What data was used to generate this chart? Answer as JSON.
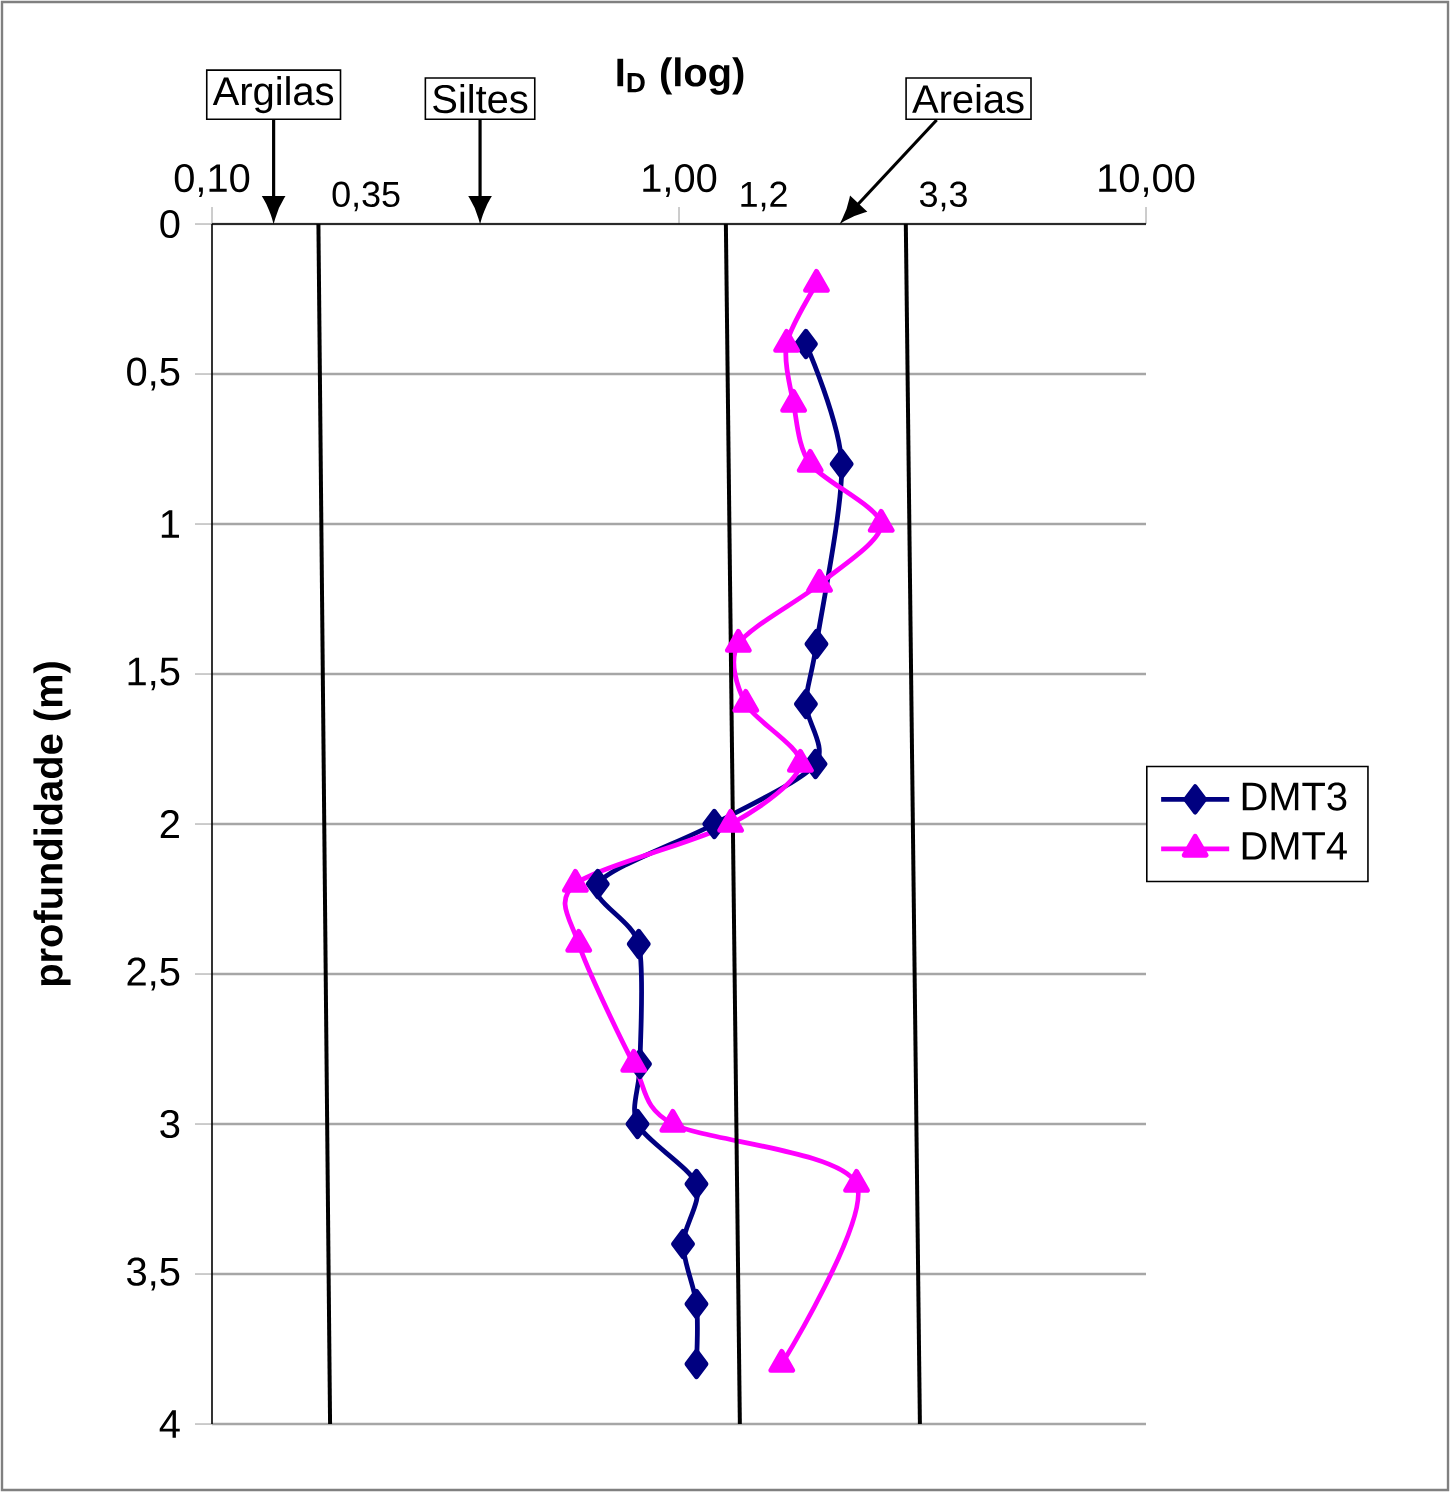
{
  "chart_data": {
    "type": "line",
    "xlabel": "**I$_{D}$ (log)**",
    "ylabel": "**profundidade (m)**",
    "log": "x",
    "xlim": [
      0.1,
      10
    ],
    "xticks": [
      {
        "value": 0.1,
        "label": "0,10"
      },
      {
        "value": 1,
        "label": "1,00"
      },
      {
        "value": 10,
        "label": "10,00"
      }
    ],
    "ylim": [
      4,
      0
    ],
    "yticks": [
      0,
      {
        "value": 0.5,
        "label": "0,5"
      },
      1,
      {
        "value": 1.5,
        "label": "1,5"
      },
      2,
      {
        "value": 2.5,
        "label": "2,5"
      },
      3,
      {
        "value": 3.5,
        "label": "3,5"
      },
      4
    ],
    "grid": "y",
    "legend": "right",
    "series": [
      {
        "name": "DMT3",
        "color": "#000080",
        "marker": "diamond",
        "x": [
          1.87,
          2.23,
          1.97,
          1.87,
          1.96,
          1.19,
          0.67,
          0.82,
          0.825,
          0.815,
          1.09,
          1.02,
          1.09,
          1.09
        ],
        "values": [
          0.4,
          0.8,
          1.4,
          1.6,
          1.8,
          2.0,
          2.2,
          2.4,
          2.8,
          3.0,
          3.2,
          3.4,
          3.6,
          3.8
        ]
      },
      {
        "name": "DMT4",
        "color": "#ff00ff",
        "marker": "triangle",
        "x": [
          1.97,
          1.7,
          1.76,
          1.91,
          2.71,
          2.0,
          1.34,
          1.39,
          1.82,
          1.29,
          0.6,
          0.61,
          0.8,
          0.97,
          2.4,
          1.66
        ],
        "values": [
          0.2,
          0.4,
          0.6,
          0.8,
          1.0,
          1.2,
          1.4,
          1.6,
          1.8,
          2.0,
          2.2,
          2.4,
          2.8,
          3.0,
          3.2,
          3.8
        ]
      },
      {
        "name": "0,35",
        "color": "#000000",
        "marker": "none",
        "x": [
          0.169,
          0.179
        ],
        "values": [
          0,
          4
        ]
      },
      {
        "name": "1,2",
        "color": "#000000",
        "marker": "none",
        "x": [
          1.26,
          1.35
        ],
        "values": [
          0,
          4
        ]
      },
      {
        "name": "3,3",
        "color": "#000000",
        "marker": "none",
        "x": [
          3.06,
          3.28
        ],
        "values": [
          0,
          4
        ]
      }
    ],
    "annotations": [
      "Argilas",
      "Siltes",
      "Areias"
    ]
  }
}
